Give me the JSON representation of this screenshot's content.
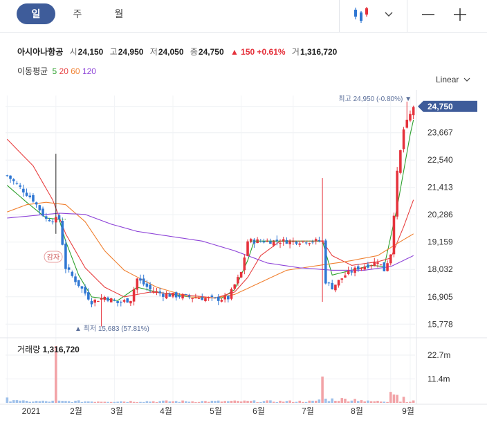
{
  "toolbar": {
    "period_tabs": [
      "일",
      "주",
      "월"
    ],
    "active_period": "일",
    "chart_type_icon": "candlestick-chart-icon",
    "dropdown_icon": "chevron-down-icon",
    "zoom_out_icon": "minus-icon",
    "zoom_in_icon": "plus-icon"
  },
  "stock": {
    "name": "아시아나항공",
    "open_label": "시",
    "open": "24,150",
    "high_label": "고",
    "high": "24,950",
    "low_label": "저",
    "low": "24,050",
    "close_label": "종",
    "close": "24,750",
    "change": "▲ 150 +0.61%",
    "volume_label": "거",
    "volume": "1,316,720"
  },
  "ma_legend": {
    "label": "이동평균",
    "periods": [
      {
        "text": "5",
        "color": "#2ca02c"
      },
      {
        "text": "20",
        "color": "#e84040"
      },
      {
        "text": "60",
        "color": "#f08030"
      },
      {
        "text": "120",
        "color": "#8e44d8"
      }
    ]
  },
  "scale": "Linear",
  "colors": {
    "up": "#e5323c",
    "down": "#2f77d3",
    "accent": "#3e5c9a"
  },
  "chart_data": {
    "type": "candlestick",
    "y_ticks": [
      "24,750",
      "23,667",
      "22,540",
      "21,413",
      "20,286",
      "19,159",
      "18,032",
      "16,905",
      "15,778"
    ],
    "x_ticks": [
      "2021",
      "2월",
      "3월",
      "4월",
      "5월",
      "6월",
      "7월",
      "8월",
      "9월"
    ],
    "current_price": "24,750",
    "max_annotation": "최고 24,950 (-0.80%) ▼",
    "min_annotation": "▲ 최저 15,683 (57.81%)",
    "event_marker": "감자",
    "ylim": [
      15500,
      25200
    ],
    "price_path": [
      [
        0,
        21900
      ],
      [
        8,
        20900
      ],
      [
        12,
        20100
      ],
      [
        16,
        20100
      ],
      [
        17,
        19100
      ],
      [
        18,
        18100
      ],
      [
        22,
        17400
      ],
      [
        26,
        16700
      ],
      [
        30,
        16900
      ],
      [
        34,
        16650
      ],
      [
        38,
        16800
      ],
      [
        40,
        17650
      ],
      [
        44,
        17200
      ],
      [
        48,
        17000
      ],
      [
        52,
        16950
      ],
      [
        56,
        16900
      ],
      [
        60,
        16850
      ],
      [
        64,
        16800
      ],
      [
        68,
        16850
      ],
      [
        70,
        17400
      ],
      [
        72,
        17900
      ],
      [
        74,
        19200
      ],
      [
        74.5,
        19200
      ],
      [
        97,
        19200
      ],
      [
        97.5,
        17600
      ],
      [
        100,
        17300
      ],
      [
        104,
        17800
      ],
      [
        108,
        18100
      ],
      [
        112,
        18250
      ],
      [
        114,
        18400
      ],
      [
        116,
        18000
      ],
      [
        118,
        18700
      ],
      [
        120,
        22000
      ],
      [
        122,
        23800
      ],
      [
        124,
        24400
      ],
      [
        125,
        24750
      ]
    ],
    "ma": [
      {
        "period": 5,
        "color": "#2ca02c",
        "points": [
          [
            0,
            21500
          ],
          [
            6,
            20800
          ],
          [
            12,
            20150
          ],
          [
            16,
            20100
          ],
          [
            18,
            19200
          ],
          [
            22,
            17800
          ],
          [
            26,
            16900
          ],
          [
            34,
            16750
          ],
          [
            40,
            17300
          ],
          [
            46,
            17100
          ],
          [
            56,
            16900
          ],
          [
            66,
            16850
          ],
          [
            70,
            17200
          ],
          [
            74,
            18400
          ],
          [
            76,
            19200
          ],
          [
            97,
            19200
          ],
          [
            100,
            17800
          ],
          [
            106,
            18000
          ],
          [
            112,
            18200
          ],
          [
            116,
            18150
          ],
          [
            120,
            20600
          ],
          [
            124,
            23600
          ],
          [
            125,
            24200
          ]
        ]
      },
      {
        "period": 20,
        "color": "#e84040",
        "points": [
          [
            0,
            23400
          ],
          [
            8,
            22300
          ],
          [
            14,
            20900
          ],
          [
            18,
            19500
          ],
          [
            24,
            18100
          ],
          [
            30,
            17300
          ],
          [
            36,
            16900
          ],
          [
            44,
            17100
          ],
          [
            54,
            17000
          ],
          [
            64,
            16850
          ],
          [
            70,
            17100
          ],
          [
            74,
            17700
          ],
          [
            78,
            18600
          ],
          [
            84,
            19200
          ],
          [
            97,
            19200
          ],
          [
            100,
            18600
          ],
          [
            106,
            18200
          ],
          [
            114,
            18350
          ],
          [
            118,
            18500
          ],
          [
            122,
            19800
          ],
          [
            125,
            20900
          ]
        ]
      },
      {
        "period": 60,
        "color": "#f08030",
        "points": [
          [
            0,
            20400
          ],
          [
            6,
            20700
          ],
          [
            12,
            20800
          ],
          [
            18,
            20700
          ],
          [
            24,
            20000
          ],
          [
            30,
            18800
          ],
          [
            36,
            18000
          ],
          [
            46,
            17300
          ],
          [
            56,
            16900
          ],
          [
            64,
            16850
          ],
          [
            70,
            17000
          ],
          [
            78,
            17500
          ],
          [
            86,
            18000
          ],
          [
            96,
            18200
          ],
          [
            104,
            18350
          ],
          [
            114,
            18600
          ],
          [
            120,
            19100
          ],
          [
            125,
            19500
          ]
        ]
      },
      {
        "period": 120,
        "color": "#8e44d8",
        "points": [
          [
            0,
            20150
          ],
          [
            8,
            20250
          ],
          [
            16,
            20350
          ],
          [
            24,
            20300
          ],
          [
            32,
            19900
          ],
          [
            40,
            19600
          ],
          [
            50,
            19400
          ],
          [
            60,
            19200
          ],
          [
            70,
            18800
          ],
          [
            80,
            18300
          ],
          [
            90,
            18100
          ],
          [
            100,
            18000
          ],
          [
            110,
            18000
          ],
          [
            118,
            18150
          ],
          [
            125,
            18600
          ]
        ]
      }
    ],
    "volume": {
      "label": "거래량",
      "value": "1,316,720",
      "y_ticks": [
        "22.7m",
        "11.4m"
      ],
      "ylim": [
        0,
        27000000
      ],
      "spikes": [
        [
          15,
          27000000
        ],
        [
          97,
          12500000
        ],
        [
          118,
          5200000
        ],
        [
          119,
          4000000
        ],
        [
          120,
          3800000
        ],
        [
          122,
          2900000
        ]
      ]
    }
  }
}
